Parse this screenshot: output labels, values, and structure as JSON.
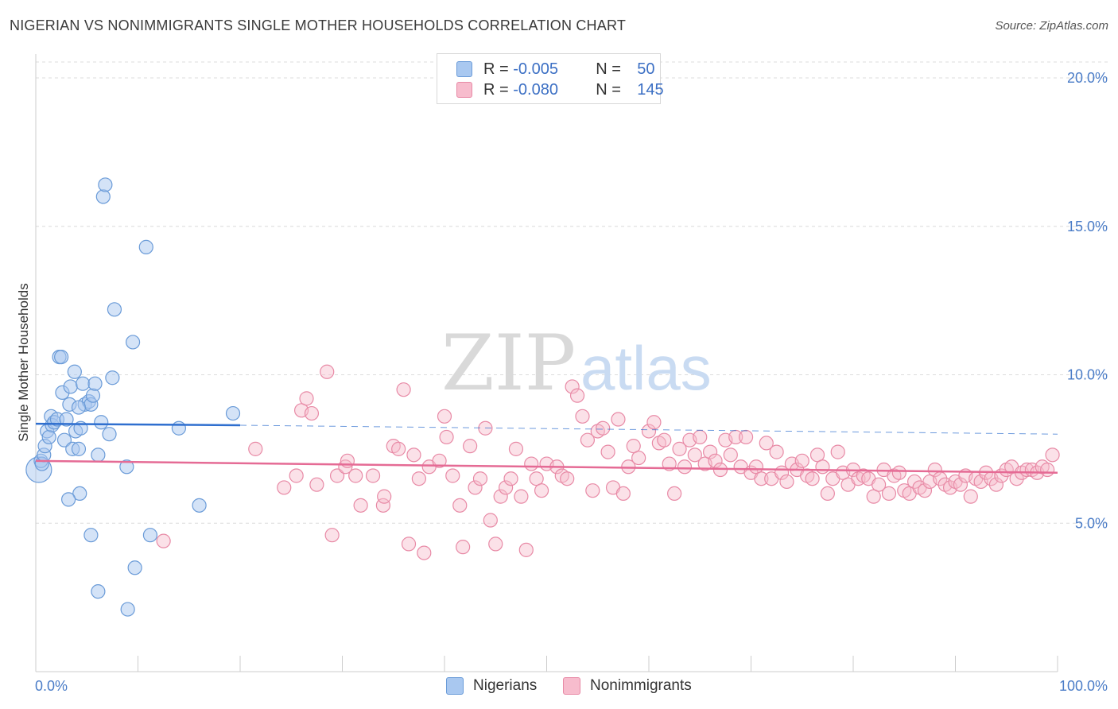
{
  "header": {
    "title": "NIGERIAN VS NONIMMIGRANTS SINGLE MOTHER HOUSEHOLDS CORRELATION CHART",
    "source": "Source: ZipAtlas.com"
  },
  "legend": {
    "rows": [
      {
        "r_label": "R = ",
        "r_value": "-0.005",
        "n_label": "N = ",
        "n_value": "50"
      },
      {
        "r_label": "R = ",
        "r_value": "-0.080",
        "n_label": "N = ",
        "n_value": "145"
      }
    ]
  },
  "bottom_legend": {
    "series_a": "Nigerians",
    "series_b": "Nonimmigrants"
  },
  "watermark": {
    "zip": "ZIP",
    "atlas": "atlas"
  },
  "colors": {
    "blue_fill": "#a9c8f0",
    "blue_stroke": "#6a9bd8",
    "blue_line": "#2f6fcf",
    "pink_fill": "#f7bccd",
    "pink_stroke": "#e88aa6",
    "pink_line": "#e56b95"
  },
  "chart_data": {
    "type": "scatter",
    "ylabel": "Single Mother Households",
    "xlabel": "",
    "xlim": [
      0,
      100
    ],
    "ylim": [
      0,
      20
    ],
    "x_tick_labels": [
      "0.0%",
      "100.0%"
    ],
    "y_ticks": [
      5,
      10,
      15,
      20
    ],
    "y_tick_labels": [
      "5.0%",
      "10.0%",
      "15.0%",
      "20.0%"
    ],
    "grid": true,
    "series": [
      {
        "name": "Nigerians",
        "R": -0.005,
        "N": 50,
        "trend": {
          "x": [
            0,
            20
          ],
          "y": [
            8.35,
            8.3
          ],
          "dashed_to": [
            100,
            8.0
          ]
        },
        "points": [
          [
            0.3,
            6.8
          ],
          [
            0.5,
            7.1
          ],
          [
            0.6,
            7.0
          ],
          [
            0.8,
            7.3
          ],
          [
            0.9,
            7.6
          ],
          [
            1.1,
            8.1
          ],
          [
            1.3,
            7.9
          ],
          [
            1.5,
            8.6
          ],
          [
            1.6,
            8.3
          ],
          [
            1.8,
            8.4
          ],
          [
            2.1,
            8.5
          ],
          [
            2.3,
            10.6
          ],
          [
            2.5,
            10.6
          ],
          [
            2.6,
            9.4
          ],
          [
            2.8,
            7.8
          ],
          [
            3.0,
            8.5
          ],
          [
            3.3,
            9.0
          ],
          [
            3.4,
            9.6
          ],
          [
            3.6,
            7.5
          ],
          [
            3.8,
            10.1
          ],
          [
            3.9,
            8.1
          ],
          [
            4.2,
            7.5
          ],
          [
            4.4,
            8.2
          ],
          [
            4.6,
            9.7
          ],
          [
            4.8,
            9.0
          ],
          [
            5.2,
            9.1
          ],
          [
            5.4,
            9.0
          ],
          [
            5.6,
            9.3
          ],
          [
            5.8,
            9.7
          ],
          [
            6.1,
            7.3
          ],
          [
            6.4,
            8.4
          ],
          [
            6.6,
            16.0
          ],
          [
            6.8,
            16.4
          ],
          [
            7.2,
            8.0
          ],
          [
            7.5,
            9.9
          ],
          [
            7.7,
            12.2
          ],
          [
            8.9,
            6.9
          ],
          [
            9.5,
            11.1
          ],
          [
            10.8,
            14.3
          ],
          [
            11.2,
            4.6
          ],
          [
            14.0,
            8.2
          ],
          [
            16.0,
            5.6
          ],
          [
            19.3,
            8.7
          ],
          [
            4.3,
            6.0
          ],
          [
            3.2,
            5.8
          ],
          [
            5.4,
            4.6
          ],
          [
            6.1,
            2.7
          ],
          [
            9.7,
            3.5
          ],
          [
            9.0,
            2.1
          ],
          [
            4.2,
            8.9
          ]
        ]
      },
      {
        "name": "Nonimmigrants",
        "R": -0.08,
        "N": 145,
        "trend": {
          "x": [
            0,
            100
          ],
          "y": [
            7.1,
            6.7
          ]
        },
        "points": [
          [
            12.5,
            4.4
          ],
          [
            21.5,
            7.5
          ],
          [
            24.3,
            6.2
          ],
          [
            25.5,
            6.6
          ],
          [
            26.0,
            8.8
          ],
          [
            26.5,
            9.2
          ],
          [
            27.0,
            8.7
          ],
          [
            27.5,
            6.3
          ],
          [
            28.5,
            10.1
          ],
          [
            29.0,
            4.6
          ],
          [
            29.5,
            6.6
          ],
          [
            30.3,
            6.9
          ],
          [
            30.5,
            7.1
          ],
          [
            31.3,
            6.6
          ],
          [
            31.8,
            5.6
          ],
          [
            33.0,
            6.6
          ],
          [
            34.0,
            5.6
          ],
          [
            34.1,
            5.9
          ],
          [
            35.0,
            7.6
          ],
          [
            35.5,
            7.5
          ],
          [
            36.0,
            9.5
          ],
          [
            36.5,
            4.3
          ],
          [
            37.0,
            7.3
          ],
          [
            37.5,
            6.5
          ],
          [
            38.0,
            4.0
          ],
          [
            38.5,
            6.9
          ],
          [
            39.5,
            7.1
          ],
          [
            40.0,
            8.6
          ],
          [
            40.2,
            7.9
          ],
          [
            40.8,
            6.6
          ],
          [
            41.5,
            5.6
          ],
          [
            41.8,
            4.2
          ],
          [
            42.5,
            7.6
          ],
          [
            43.0,
            6.2
          ],
          [
            43.5,
            6.5
          ],
          [
            44.0,
            8.2
          ],
          [
            44.5,
            5.1
          ],
          [
            45.0,
            4.3
          ],
          [
            45.5,
            5.9
          ],
          [
            46.0,
            6.2
          ],
          [
            46.5,
            6.5
          ],
          [
            47.0,
            7.5
          ],
          [
            47.5,
            5.9
          ],
          [
            48.0,
            4.1
          ],
          [
            48.5,
            7.0
          ],
          [
            49.0,
            6.5
          ],
          [
            49.5,
            6.1
          ],
          [
            50.0,
            7.0
          ],
          [
            51.0,
            6.9
          ],
          [
            51.5,
            6.6
          ],
          [
            52.0,
            6.5
          ],
          [
            52.5,
            9.6
          ],
          [
            53.0,
            9.3
          ],
          [
            53.5,
            8.6
          ],
          [
            54.0,
            7.8
          ],
          [
            54.5,
            6.1
          ],
          [
            55.0,
            8.1
          ],
          [
            55.5,
            8.2
          ],
          [
            56.0,
            7.4
          ],
          [
            56.5,
            6.2
          ],
          [
            57.0,
            8.5
          ],
          [
            57.5,
            6.0
          ],
          [
            58.0,
            6.9
          ],
          [
            58.5,
            7.6
          ],
          [
            59.0,
            7.2
          ],
          [
            60.0,
            8.1
          ],
          [
            60.5,
            8.4
          ],
          [
            61.0,
            7.7
          ],
          [
            61.5,
            7.8
          ],
          [
            62.0,
            7.0
          ],
          [
            62.5,
            6.0
          ],
          [
            63.0,
            7.5
          ],
          [
            63.5,
            6.9
          ],
          [
            64.0,
            7.8
          ],
          [
            64.5,
            7.3
          ],
          [
            65.0,
            7.9
          ],
          [
            65.5,
            7.0
          ],
          [
            66.0,
            7.4
          ],
          [
            66.5,
            7.1
          ],
          [
            67.0,
            6.8
          ],
          [
            67.5,
            7.8
          ],
          [
            68.0,
            7.3
          ],
          [
            68.5,
            7.9
          ],
          [
            69.0,
            6.9
          ],
          [
            69.5,
            7.9
          ],
          [
            70.0,
            6.7
          ],
          [
            70.5,
            6.9
          ],
          [
            71.0,
            6.5
          ],
          [
            71.5,
            7.7
          ],
          [
            72.0,
            6.5
          ],
          [
            72.5,
            7.4
          ],
          [
            73.0,
            6.7
          ],
          [
            73.5,
            6.4
          ],
          [
            74.0,
            7.0
          ],
          [
            74.5,
            6.8
          ],
          [
            75.0,
            7.1
          ],
          [
            75.5,
            6.6
          ],
          [
            76.0,
            6.5
          ],
          [
            76.5,
            7.3
          ],
          [
            77.0,
            6.9
          ],
          [
            77.5,
            6.0
          ],
          [
            78.0,
            6.5
          ],
          [
            78.5,
            7.4
          ],
          [
            79.0,
            6.7
          ],
          [
            79.5,
            6.3
          ],
          [
            80.0,
            6.8
          ],
          [
            80.5,
            6.5
          ],
          [
            81.0,
            6.6
          ],
          [
            81.5,
            6.5
          ],
          [
            82.0,
            5.9
          ],
          [
            82.5,
            6.3
          ],
          [
            83.0,
            6.8
          ],
          [
            83.5,
            6.0
          ],
          [
            84.0,
            6.6
          ],
          [
            84.5,
            6.7
          ],
          [
            85.0,
            6.1
          ],
          [
            85.5,
            6.0
          ],
          [
            86.0,
            6.4
          ],
          [
            86.5,
            6.2
          ],
          [
            87.0,
            6.1
          ],
          [
            87.5,
            6.4
          ],
          [
            88.0,
            6.8
          ],
          [
            88.5,
            6.5
          ],
          [
            89.0,
            6.3
          ],
          [
            89.5,
            6.2
          ],
          [
            90.0,
            6.4
          ],
          [
            90.5,
            6.3
          ],
          [
            91.0,
            6.6
          ],
          [
            91.5,
            5.9
          ],
          [
            92.0,
            6.5
          ],
          [
            92.5,
            6.4
          ],
          [
            93.0,
            6.7
          ],
          [
            93.5,
            6.5
          ],
          [
            94.0,
            6.3
          ],
          [
            94.5,
            6.6
          ],
          [
            95.0,
            6.8
          ],
          [
            95.5,
            6.9
          ],
          [
            96.0,
            6.5
          ],
          [
            96.5,
            6.7
          ],
          [
            97.0,
            6.8
          ],
          [
            97.5,
            6.8
          ],
          [
            98.0,
            6.7
          ],
          [
            98.5,
            6.9
          ],
          [
            99.0,
            6.8
          ],
          [
            99.5,
            7.3
          ]
        ]
      }
    ]
  }
}
